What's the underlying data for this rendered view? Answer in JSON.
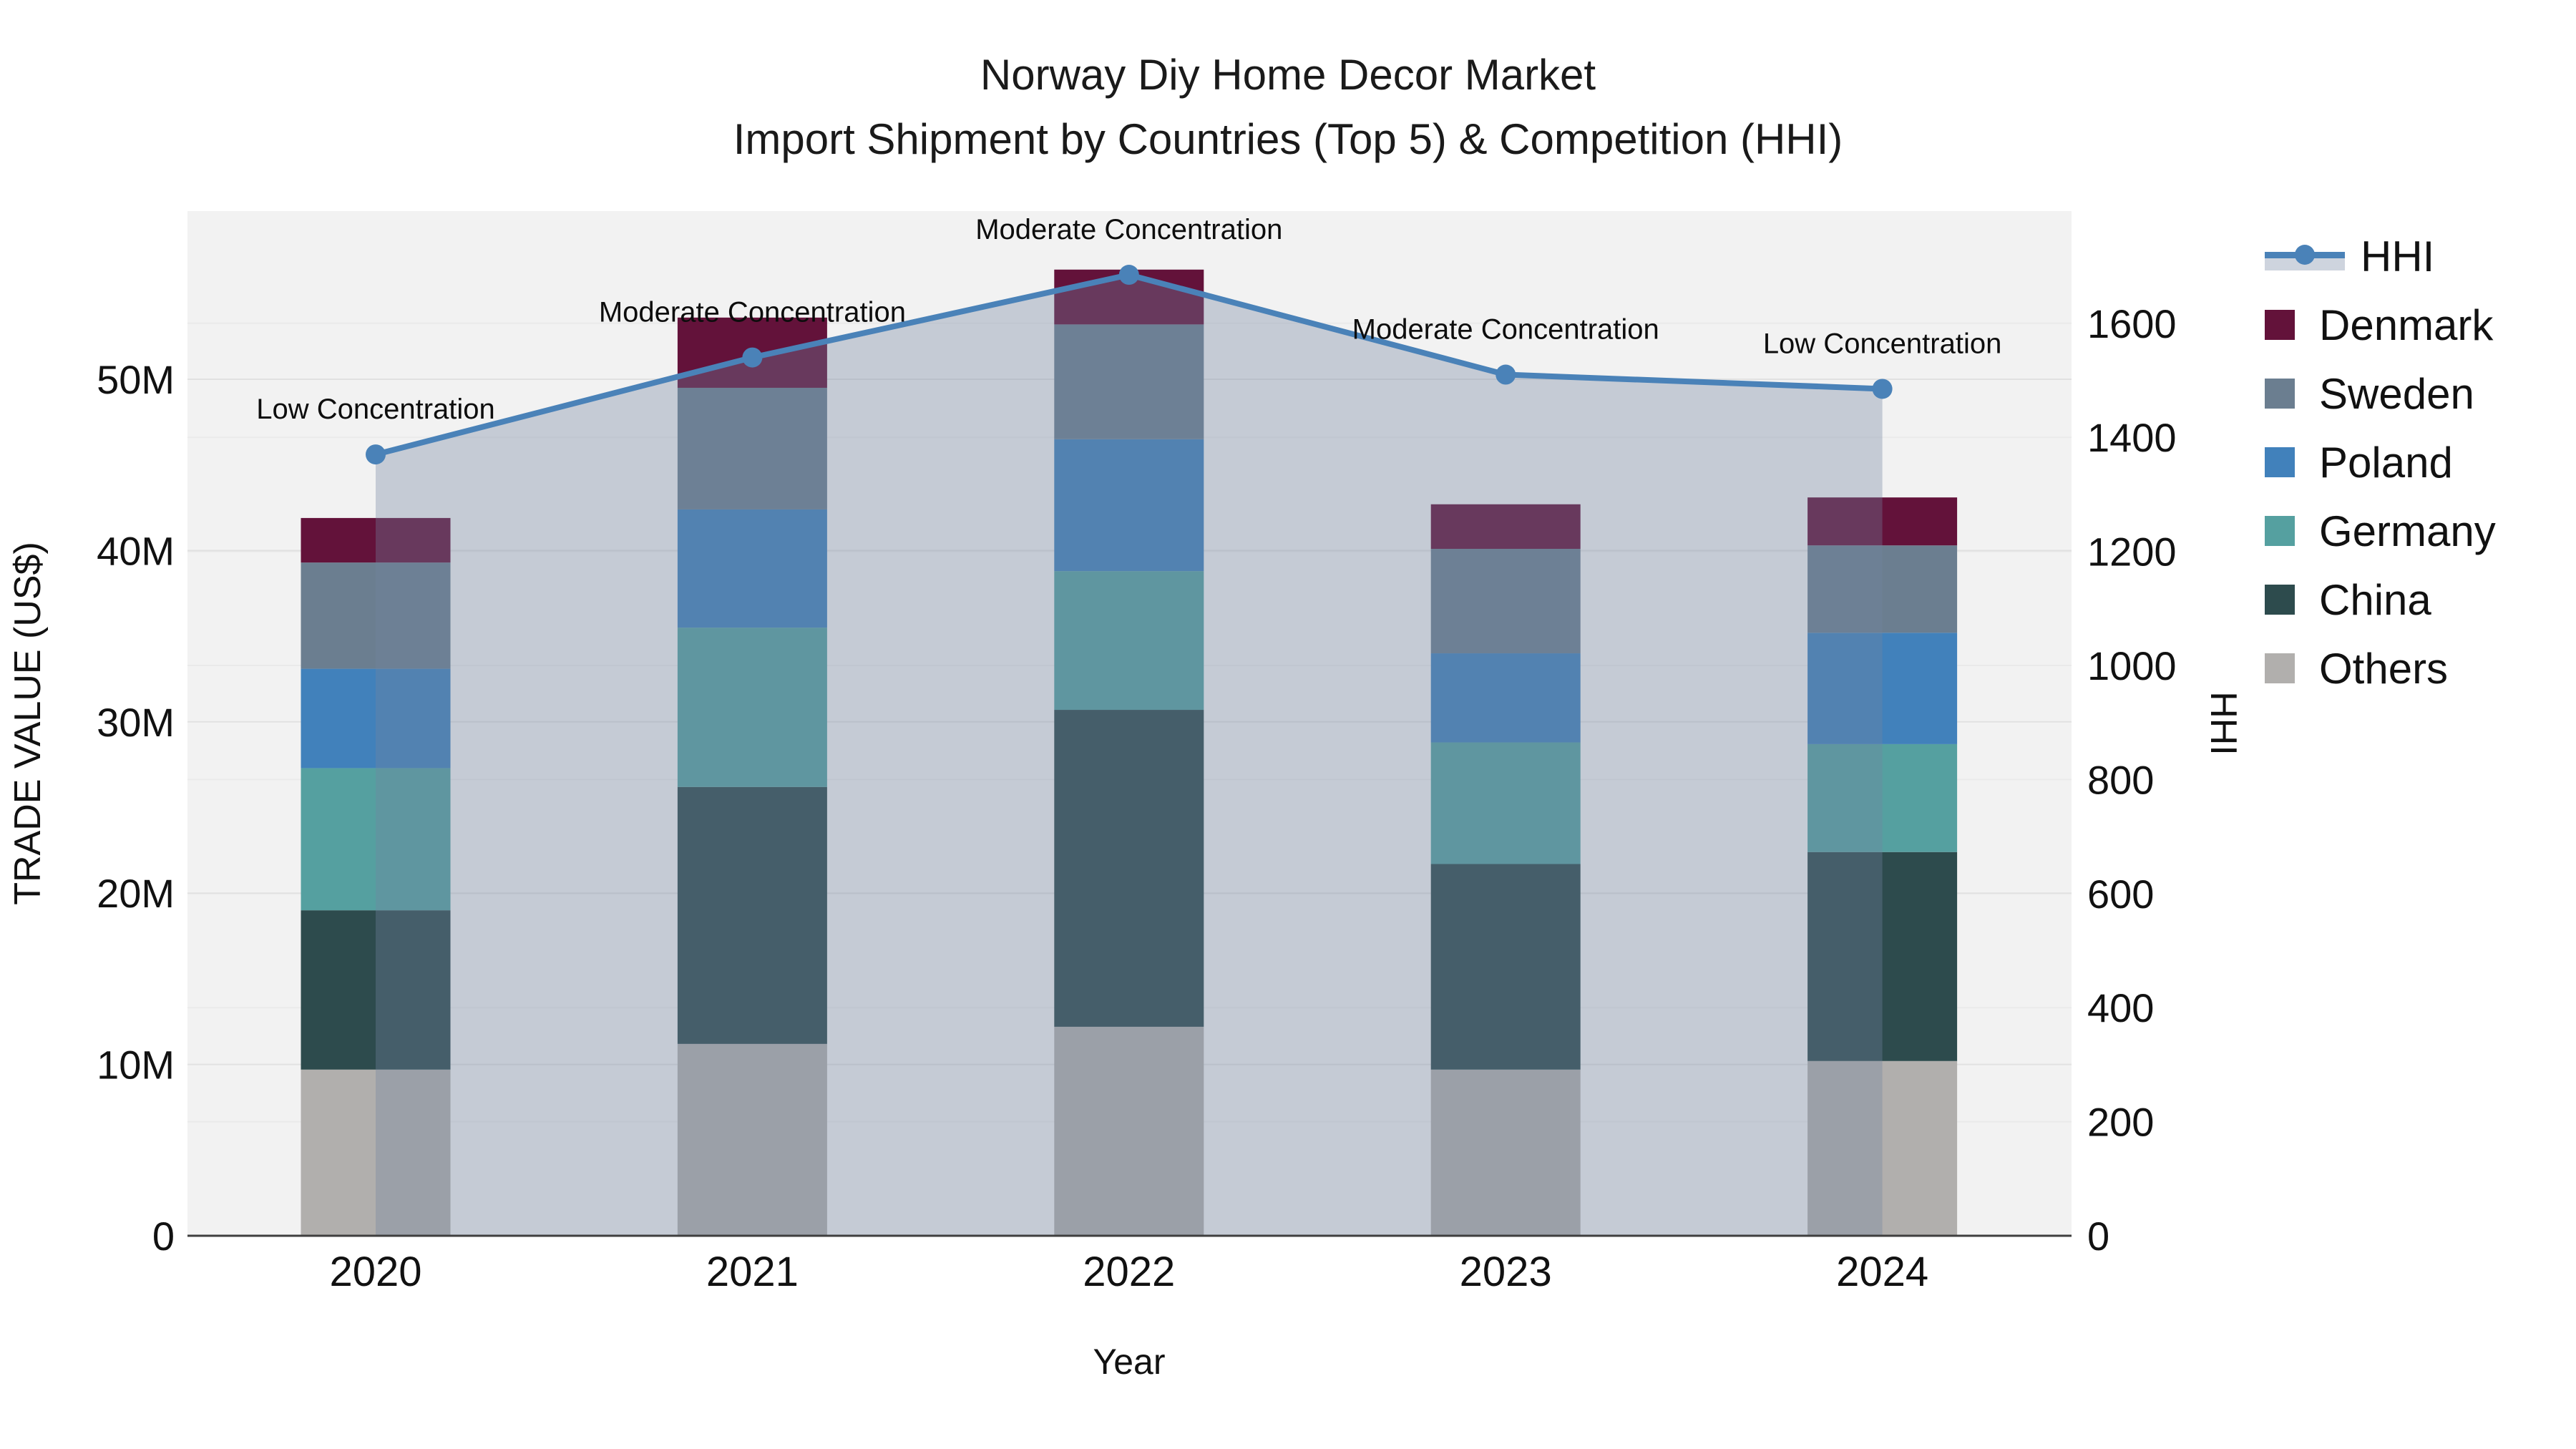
{
  "chart_data": {
    "type": "combo_stacked_bar_line",
    "title": "Norway Diy Home Decor Market",
    "subtitle": "Import Shipment by Countries (Top 5) & Competition (HHI)",
    "xlabel": "Year",
    "ylabel_left": "TRADE VALUE (US$)",
    "ylabel_right": "HHI",
    "categories": [
      "2020",
      "2021",
      "2022",
      "2023",
      "2024"
    ],
    "bar_unit": "million US$",
    "bar_series": [
      {
        "name": "Others",
        "color": "#b1afad",
        "values": [
          9.7,
          11.2,
          12.2,
          9.7,
          10.2
        ]
      },
      {
        "name": "China",
        "color": "#2d4b4d",
        "values": [
          9.3,
          15.0,
          18.5,
          12.0,
          12.2
        ]
      },
      {
        "name": "Germany",
        "color": "#55a0a0",
        "values": [
          8.3,
          9.3,
          8.1,
          7.1,
          6.3
        ]
      },
      {
        "name": "Poland",
        "color": "#4181bb",
        "values": [
          5.8,
          6.9,
          7.7,
          5.2,
          6.5
        ]
      },
      {
        "name": "Sweden",
        "color": "#6b7e90",
        "values": [
          6.2,
          7.1,
          6.7,
          6.1,
          5.1
        ]
      },
      {
        "name": "Denmark",
        "color": "#63123a",
        "values": [
          2.6,
          4.1,
          3.2,
          2.6,
          2.8
        ]
      }
    ],
    "bar_totals": [
      41.9,
      53.6,
      56.4,
      42.7,
      43.1
    ],
    "line_series": {
      "name": "HHI",
      "color": "#4a82b8",
      "fill_color": "rgba(115,131,161,0.35)",
      "values": [
        1370,
        1540,
        1685,
        1510,
        1485
      ]
    },
    "annotations": [
      {
        "year": "2020",
        "text": "Low Concentration"
      },
      {
        "year": "2021",
        "text": "Moderate Concentration"
      },
      {
        "year": "2022",
        "text": "Moderate Concentration"
      },
      {
        "year": "2023",
        "text": "Moderate Concentration"
      },
      {
        "year": "2024",
        "text": "Low Concentration"
      }
    ],
    "axis_left": {
      "tick_labels": [
        "0",
        "10M",
        "20M",
        "30M",
        "40M",
        "50M"
      ],
      "tick_values": [
        0,
        10,
        20,
        30,
        40,
        50
      ],
      "range": [
        0,
        59.8
      ]
    },
    "axis_right": {
      "tick_labels": [
        "0",
        "200",
        "400",
        "600",
        "800",
        "1000",
        "1200",
        "1400",
        "1600"
      ],
      "tick_values": [
        0,
        200,
        400,
        600,
        800,
        1000,
        1200,
        1400,
        1600
      ],
      "range": [
        0,
        1795
      ]
    },
    "legend_order": [
      "HHI",
      "Denmark",
      "Sweden",
      "Poland",
      "Germany",
      "China",
      "Others"
    ],
    "grid": true,
    "legend_position": "top-right"
  },
  "colors": {
    "plot_background": "#f2f2f2",
    "page_background": "#ffffff",
    "grid_major": "#e1e1e1",
    "grid_minor": "#eaeaea",
    "axis_line": "#3f3f3f",
    "text": "#111111"
  }
}
